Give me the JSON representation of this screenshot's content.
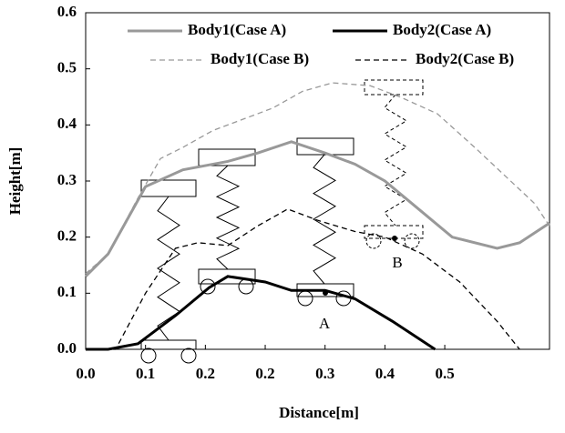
{
  "chart_data": {
    "type": "line",
    "xlabel": "Distance[m]",
    "ylabel": "Height[m]",
    "xlim": [
      0,
      0.62
    ],
    "ylim": [
      0,
      0.6
    ],
    "xticks": [
      {
        "value": 0,
        "label": "0.0"
      },
      {
        "value": 0.08,
        "label": "0.1"
      },
      {
        "value": 0.16,
        "label": "0.2"
      },
      {
        "value": 0.24,
        "label": "0.2"
      },
      {
        "value": 0.32,
        "label": "0.3"
      },
      {
        "value": 0.4,
        "label": "0.4"
      },
      {
        "value": 0.48,
        "label": "0.5"
      }
    ],
    "yticks": [
      {
        "value": 0,
        "label": "0.0"
      },
      0.1,
      0.2,
      0.3,
      0.4,
      0.5,
      0.6
    ],
    "annotations": [
      "A",
      "B"
    ],
    "series": [
      {
        "name": "Body1(Case A)",
        "color": "#999999",
        "dash": false,
        "width": 3,
        "x": [
          0,
          0.03,
          0.08,
          0.13,
          0.19,
          0.23,
          0.275,
          0.32,
          0.36,
          0.4,
          0.445,
          0.49,
          0.55,
          0.58,
          0.62
        ],
        "values": [
          0.13,
          0.17,
          0.29,
          0.32,
          0.335,
          0.35,
          0.37,
          0.35,
          0.33,
          0.3,
          0.25,
          0.2,
          0.18,
          0.19,
          0.225
        ]
      },
      {
        "name": "Body2(Case A)",
        "color": "#000000",
        "dash": false,
        "width": 3,
        "x": [
          0,
          0.03,
          0.07,
          0.12,
          0.165,
          0.19,
          0.24,
          0.275,
          0.32,
          0.36,
          0.41,
          0.467
        ],
        "values": [
          0,
          0,
          0.01,
          0.06,
          0.11,
          0.13,
          0.12,
          0.105,
          0.105,
          0.09,
          0.05,
          0
        ]
      },
      {
        "name": "Body1(Case B)",
        "color": "#999999",
        "dash": true,
        "width": 1.3,
        "x": [
          0,
          0.03,
          0.07,
          0.1,
          0.13,
          0.17,
          0.21,
          0.25,
          0.29,
          0.33,
          0.38,
          0.42,
          0.47,
          0.52,
          0.56,
          0.6,
          0.62
        ],
        "values": [
          0.135,
          0.17,
          0.27,
          0.34,
          0.36,
          0.39,
          0.41,
          0.43,
          0.46,
          0.475,
          0.47,
          0.45,
          0.42,
          0.36,
          0.31,
          0.26,
          0.22
        ]
      },
      {
        "name": "Body2(Case B)",
        "color": "#000000",
        "dash": true,
        "width": 1.3,
        "x": [
          0,
          0.04,
          0.08,
          0.12,
          0.15,
          0.19,
          0.23,
          0.27,
          0.31,
          0.36,
          0.4,
          0.45,
          0.5,
          0.55,
          0.58
        ],
        "values": [
          0,
          0,
          0.1,
          0.18,
          0.19,
          0.185,
          0.22,
          0.25,
          0.23,
          0.21,
          0.2,
          0.17,
          0.12,
          0.05,
          0
        ]
      }
    ]
  }
}
